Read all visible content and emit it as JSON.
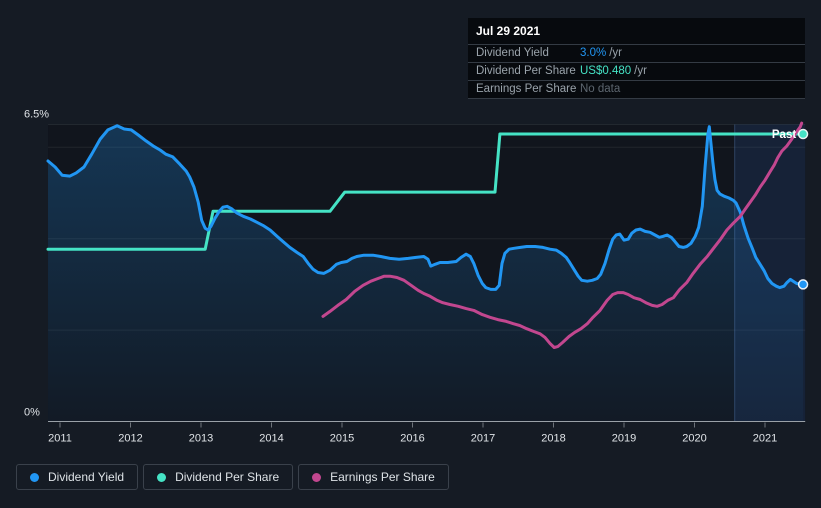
{
  "theme": {
    "bg": "#151b24",
    "plot_bg": "#11151d",
    "blue": "#2196f3",
    "teal": "#45e3c5",
    "pink": "#c2478f",
    "grid": "rgba(255,255,255,0.07)",
    "axis_line": "#9aa1a8",
    "axis_text": "#dfe3e7",
    "tooltip_bg": "#070a0e",
    "tooltip_border": "#343b44",
    "label_gray": "#9aa3ab",
    "muted": "#5d666f",
    "legend_border": "#3a414b",
    "legend_text": "#dde2e6",
    "past_fill": "rgba(47,107,190,0.16)",
    "past_edge": "rgba(110,160,230,0.30)"
  },
  "tooltip": {
    "date": "Jul 29 2021",
    "rows": [
      {
        "label": "Dividend Yield",
        "value": "3.0%",
        "suffix": "/yr"
      },
      {
        "label": "Dividend Per Share",
        "value": "US$0.480",
        "suffix": "/yr"
      },
      {
        "label": "Earnings Per Share",
        "value": "No data",
        "suffix": ""
      }
    ]
  },
  "legend": {
    "items": [
      {
        "label": "Dividend Yield",
        "color_key": "blue"
      },
      {
        "label": "Dividend Per Share",
        "color_key": "teal"
      },
      {
        "label": "Earnings Per Share",
        "color_key": "pink"
      }
    ]
  },
  "chart_data": {
    "type": "line",
    "title": "",
    "x_axis": {
      "ticks": [
        2011,
        2012,
        2013,
        2014,
        2015,
        2016,
        2017,
        2018,
        2019,
        2020,
        2021
      ],
      "range": [
        2010.83,
        2021.57
      ]
    },
    "y_axis": {
      "label_top": "6.5%",
      "label_bottom": "0%",
      "range": [
        0,
        6.5
      ],
      "gridlines": [
        6.5,
        6,
        4,
        2
      ],
      "unit": "percent (dividend yield axis)"
    },
    "past_region": {
      "label": "Past",
      "start": 2020.57,
      "end": 2021.57
    },
    "series": [
      {
        "name": "Dividend Yield",
        "color_key": "blue",
        "style": "line-with-area",
        "unit": "%",
        "end_dot": true,
        "points": [
          [
            2010.83,
            5.7
          ],
          [
            2010.93,
            5.57
          ],
          [
            2011.03,
            5.39
          ],
          [
            2011.14,
            5.37
          ],
          [
            2011.23,
            5.44
          ],
          [
            2011.34,
            5.57
          ],
          [
            2011.45,
            5.85
          ],
          [
            2011.57,
            6.18
          ],
          [
            2011.68,
            6.38
          ],
          [
            2011.81,
            6.47
          ],
          [
            2011.91,
            6.4
          ],
          [
            2012.01,
            6.38
          ],
          [
            2012.11,
            6.27
          ],
          [
            2012.22,
            6.14
          ],
          [
            2012.32,
            6.03
          ],
          [
            2012.42,
            5.94
          ],
          [
            2012.5,
            5.85
          ],
          [
            2012.6,
            5.79
          ],
          [
            2012.7,
            5.63
          ],
          [
            2012.79,
            5.48
          ],
          [
            2012.84,
            5.35
          ],
          [
            2012.9,
            5.13
          ],
          [
            2012.96,
            4.8
          ],
          [
            2013.01,
            4.4
          ],
          [
            2013.06,
            4.23
          ],
          [
            2013.1,
            4.19
          ],
          [
            2013.14,
            4.27
          ],
          [
            2013.2,
            4.45
          ],
          [
            2013.26,
            4.6
          ],
          [
            2013.31,
            4.69
          ],
          [
            2013.37,
            4.71
          ],
          [
            2013.44,
            4.65
          ],
          [
            2013.51,
            4.56
          ],
          [
            2013.6,
            4.49
          ],
          [
            2013.7,
            4.43
          ],
          [
            2013.79,
            4.36
          ],
          [
            2013.88,
            4.29
          ],
          [
            2013.98,
            4.19
          ],
          [
            2014.08,
            4.05
          ],
          [
            2014.16,
            3.94
          ],
          [
            2014.26,
            3.81
          ],
          [
            2014.36,
            3.7
          ],
          [
            2014.45,
            3.61
          ],
          [
            2014.52,
            3.46
          ],
          [
            2014.59,
            3.33
          ],
          [
            2014.66,
            3.26
          ],
          [
            2014.74,
            3.24
          ],
          [
            2014.83,
            3.31
          ],
          [
            2014.92,
            3.44
          ],
          [
            2014.99,
            3.48
          ],
          [
            2015.07,
            3.5
          ],
          [
            2015.14,
            3.57
          ],
          [
            2015.21,
            3.61
          ],
          [
            2015.31,
            3.64
          ],
          [
            2015.44,
            3.64
          ],
          [
            2015.55,
            3.61
          ],
          [
            2015.68,
            3.57
          ],
          [
            2015.81,
            3.55
          ],
          [
            2015.94,
            3.57
          ],
          [
            2016.05,
            3.59
          ],
          [
            2016.16,
            3.61
          ],
          [
            2016.22,
            3.55
          ],
          [
            2016.26,
            3.4
          ],
          [
            2016.32,
            3.44
          ],
          [
            2016.39,
            3.48
          ],
          [
            2016.5,
            3.48
          ],
          [
            2016.62,
            3.5
          ],
          [
            2016.69,
            3.59
          ],
          [
            2016.76,
            3.66
          ],
          [
            2016.82,
            3.61
          ],
          [
            2016.87,
            3.46
          ],
          [
            2016.93,
            3.2
          ],
          [
            2016.99,
            3.02
          ],
          [
            2017.04,
            2.93
          ],
          [
            2017.11,
            2.89
          ],
          [
            2017.18,
            2.89
          ],
          [
            2017.23,
            2.98
          ],
          [
            2017.27,
            3.46
          ],
          [
            2017.31,
            3.68
          ],
          [
            2017.37,
            3.77
          ],
          [
            2017.44,
            3.79
          ],
          [
            2017.53,
            3.81
          ],
          [
            2017.62,
            3.83
          ],
          [
            2017.74,
            3.83
          ],
          [
            2017.85,
            3.81
          ],
          [
            2017.95,
            3.77
          ],
          [
            2018.04,
            3.75
          ],
          [
            2018.11,
            3.68
          ],
          [
            2018.18,
            3.59
          ],
          [
            2018.23,
            3.48
          ],
          [
            2018.29,
            3.33
          ],
          [
            2018.35,
            3.18
          ],
          [
            2018.4,
            3.09
          ],
          [
            2018.48,
            3.07
          ],
          [
            2018.55,
            3.09
          ],
          [
            2018.62,
            3.13
          ],
          [
            2018.67,
            3.22
          ],
          [
            2018.73,
            3.46
          ],
          [
            2018.79,
            3.77
          ],
          [
            2018.84,
            3.99
          ],
          [
            2018.89,
            4.08
          ],
          [
            2018.94,
            4.1
          ],
          [
            2019.0,
            3.97
          ],
          [
            2019.06,
            3.99
          ],
          [
            2019.11,
            4.12
          ],
          [
            2019.17,
            4.19
          ],
          [
            2019.23,
            4.21
          ],
          [
            2019.3,
            4.16
          ],
          [
            2019.37,
            4.14
          ],
          [
            2019.44,
            4.08
          ],
          [
            2019.5,
            4.03
          ],
          [
            2019.55,
            4.05
          ],
          [
            2019.61,
            4.08
          ],
          [
            2019.67,
            4.03
          ],
          [
            2019.72,
            3.94
          ],
          [
            2019.78,
            3.83
          ],
          [
            2019.84,
            3.81
          ],
          [
            2019.89,
            3.83
          ],
          [
            2019.95,
            3.9
          ],
          [
            2020.01,
            4.05
          ],
          [
            2020.06,
            4.25
          ],
          [
            2020.11,
            4.71
          ],
          [
            2020.15,
            5.57
          ],
          [
            2020.19,
            6.29
          ],
          [
            2020.21,
            6.45
          ],
          [
            2020.23,
            6.14
          ],
          [
            2020.26,
            5.68
          ],
          [
            2020.29,
            5.3
          ],
          [
            2020.32,
            5.06
          ],
          [
            2020.36,
            4.98
          ],
          [
            2020.42,
            4.93
          ],
          [
            2020.49,
            4.89
          ],
          [
            2020.55,
            4.84
          ],
          [
            2020.59,
            4.78
          ],
          [
            2020.65,
            4.58
          ],
          [
            2020.7,
            4.29
          ],
          [
            2020.76,
            4.01
          ],
          [
            2020.82,
            3.79
          ],
          [
            2020.87,
            3.59
          ],
          [
            2020.93,
            3.44
          ],
          [
            2020.99,
            3.29
          ],
          [
            2021.04,
            3.13
          ],
          [
            2021.1,
            3.02
          ],
          [
            2021.16,
            2.96
          ],
          [
            2021.21,
            2.93
          ],
          [
            2021.27,
            2.96
          ],
          [
            2021.31,
            3.04
          ],
          [
            2021.36,
            3.11
          ],
          [
            2021.4,
            3.07
          ],
          [
            2021.45,
            3.02
          ],
          [
            2021.5,
            3.0
          ],
          [
            2021.54,
            3.0
          ]
        ]
      },
      {
        "name": "Dividend Per Share",
        "color_key": "teal",
        "style": "step-line",
        "unit": "USD (hidden axis)",
        "end_dot": true,
        "usd_steps": [
          {
            "from_year": 2010.83,
            "to_year": 2013.06,
            "usd": 0.29
          },
          {
            "from_year": 2013.17,
            "to_year": 2014.83,
            "usd": 0.35
          },
          {
            "from_year": 2015.04,
            "to_year": 2017.17,
            "usd": 0.38
          },
          {
            "from_year": 2017.24,
            "to_year": 2021.57,
            "usd": 0.48
          }
        ],
        "points": [
          [
            2010.83,
            3.77
          ],
          [
            2013.06,
            3.77
          ],
          [
            2013.17,
            4.6
          ],
          [
            2014.83,
            4.6
          ],
          [
            2015.04,
            5.02
          ],
          [
            2017.17,
            5.02
          ],
          [
            2017.24,
            6.29
          ],
          [
            2021.54,
            6.29
          ]
        ]
      },
      {
        "name": "Earnings Per Share",
        "color_key": "pink",
        "style": "line",
        "unit": "unlabeled axis (positions given in yield-axis units)",
        "end_dot": false,
        "points": [
          [
            2014.73,
            2.3
          ],
          [
            2014.83,
            2.41
          ],
          [
            2014.94,
            2.54
          ],
          [
            2015.06,
            2.67
          ],
          [
            2015.18,
            2.85
          ],
          [
            2015.3,
            2.98
          ],
          [
            2015.41,
            3.07
          ],
          [
            2015.51,
            3.13
          ],
          [
            2015.6,
            3.18
          ],
          [
            2015.68,
            3.18
          ],
          [
            2015.78,
            3.15
          ],
          [
            2015.88,
            3.09
          ],
          [
            2015.98,
            2.98
          ],
          [
            2016.08,
            2.87
          ],
          [
            2016.16,
            2.8
          ],
          [
            2016.25,
            2.74
          ],
          [
            2016.35,
            2.65
          ],
          [
            2016.43,
            2.6
          ],
          [
            2016.53,
            2.56
          ],
          [
            2016.65,
            2.52
          ],
          [
            2016.76,
            2.47
          ],
          [
            2016.87,
            2.43
          ],
          [
            2016.99,
            2.34
          ],
          [
            2017.1,
            2.28
          ],
          [
            2017.21,
            2.23
          ],
          [
            2017.33,
            2.19
          ],
          [
            2017.43,
            2.14
          ],
          [
            2017.52,
            2.1
          ],
          [
            2017.62,
            2.03
          ],
          [
            2017.72,
            1.97
          ],
          [
            2017.81,
            1.92
          ],
          [
            2017.88,
            1.84
          ],
          [
            2017.95,
            1.71
          ],
          [
            2018.01,
            1.62
          ],
          [
            2018.06,
            1.64
          ],
          [
            2018.13,
            1.73
          ],
          [
            2018.22,
            1.86
          ],
          [
            2018.3,
            1.95
          ],
          [
            2018.39,
            2.03
          ],
          [
            2018.48,
            2.14
          ],
          [
            2018.56,
            2.28
          ],
          [
            2018.66,
            2.43
          ],
          [
            2018.76,
            2.65
          ],
          [
            2018.84,
            2.78
          ],
          [
            2018.91,
            2.82
          ],
          [
            2018.99,
            2.82
          ],
          [
            2019.06,
            2.78
          ],
          [
            2019.14,
            2.71
          ],
          [
            2019.23,
            2.67
          ],
          [
            2019.31,
            2.6
          ],
          [
            2019.4,
            2.54
          ],
          [
            2019.47,
            2.52
          ],
          [
            2019.54,
            2.56
          ],
          [
            2019.62,
            2.65
          ],
          [
            2019.7,
            2.71
          ],
          [
            2019.79,
            2.89
          ],
          [
            2019.89,
            3.04
          ],
          [
            2019.98,
            3.24
          ],
          [
            2020.08,
            3.44
          ],
          [
            2020.18,
            3.61
          ],
          [
            2020.26,
            3.77
          ],
          [
            2020.36,
            3.97
          ],
          [
            2020.46,
            4.19
          ],
          [
            2020.55,
            4.34
          ],
          [
            2020.65,
            4.49
          ],
          [
            2020.72,
            4.65
          ],
          [
            2020.79,
            4.8
          ],
          [
            2020.86,
            4.95
          ],
          [
            2020.93,
            5.13
          ],
          [
            2021.0,
            5.28
          ],
          [
            2021.07,
            5.46
          ],
          [
            2021.13,
            5.61
          ],
          [
            2021.18,
            5.77
          ],
          [
            2021.24,
            5.92
          ],
          [
            2021.31,
            6.03
          ],
          [
            2021.38,
            6.18
          ],
          [
            2021.45,
            6.34
          ],
          [
            2021.5,
            6.45
          ],
          [
            2021.52,
            6.53
          ]
        ]
      }
    ]
  }
}
